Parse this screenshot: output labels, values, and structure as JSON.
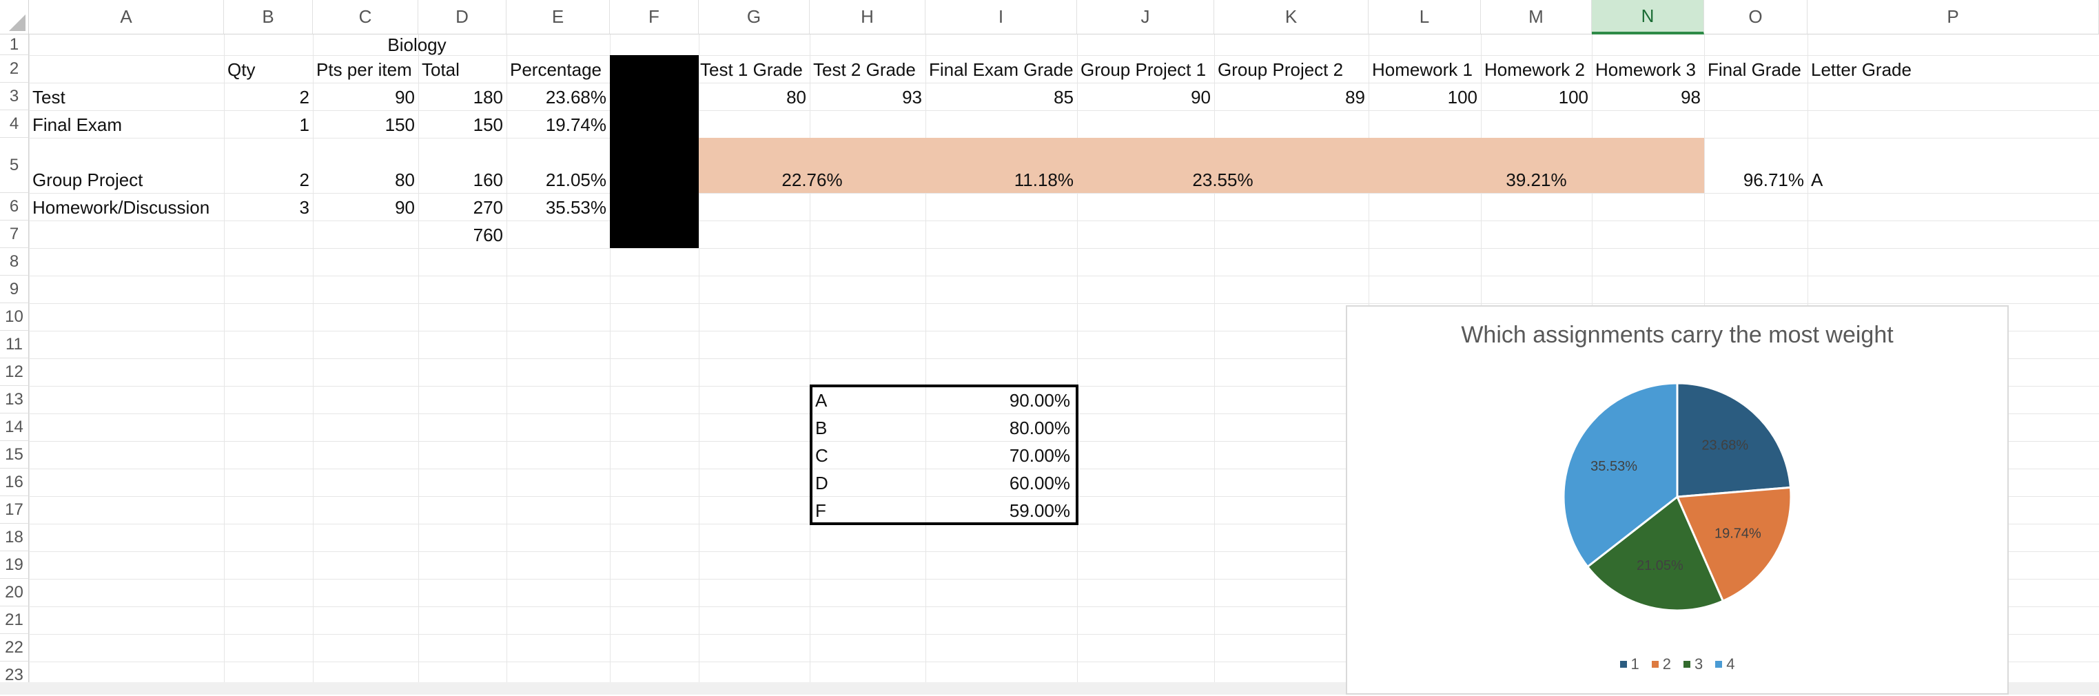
{
  "columns": [
    "A",
    "B",
    "C",
    "D",
    "E",
    "F",
    "G",
    "H",
    "I",
    "J",
    "K",
    "L",
    "M",
    "N",
    "O",
    "P"
  ],
  "selected_column": "N",
  "rows": [
    "1",
    "2",
    "3",
    "4",
    "5",
    "6",
    "7",
    "8",
    "9",
    "10",
    "11",
    "12",
    "13",
    "14",
    "15",
    "16",
    "17",
    "18",
    "19",
    "20",
    "21",
    "22",
    "23"
  ],
  "cells": {
    "title": "Biology",
    "headers": {
      "qty": "Qty",
      "pts": "Pts per item",
      "total": "Total",
      "percentage": "Percentage",
      "test1": "Test 1 Grade",
      "test2": "Test 2 Grade",
      "final_exam": "Final Exam Grade",
      "gp1": "Group Project 1",
      "gp2": "Group Project 2",
      "hw1": "Homework 1",
      "hw2": "Homework 2",
      "hw3": "Homework 3",
      "final_grade": "Final Grade",
      "letter_grade": "Letter Grade"
    },
    "categories": [
      {
        "name": "Test",
        "qty": "2",
        "pts": "90",
        "total": "180",
        "pct": "23.68%"
      },
      {
        "name": "Final Exam",
        "qty": "1",
        "pts": "150",
        "total": "150",
        "pct": "19.74%"
      },
      {
        "name": "Group Project",
        "qty": "2",
        "pts": "80",
        "total": "160",
        "pct": "21.05%"
      },
      {
        "name": "Homework/Discussion",
        "qty": "3",
        "pts": "90",
        "total": "270",
        "pct": "35.53%"
      }
    ],
    "grand_total": "760",
    "grades": {
      "test1": "80",
      "test2": "93",
      "final_exam": "85",
      "gp1": "90",
      "gp2": "89",
      "hw1": "100",
      "hw2": "100",
      "hw3": "98"
    },
    "weighted": {
      "test": "22.76%",
      "final_exam": "11.18%",
      "group_project": "23.55%",
      "homework": "39.21%",
      "final_grade": "96.71%",
      "letter": "A"
    },
    "scale": [
      {
        "letter": "A",
        "min": "90.00%"
      },
      {
        "letter": "B",
        "min": "80.00%"
      },
      {
        "letter": "C",
        "min": "70.00%"
      },
      {
        "letter": "D",
        "min": "60.00%"
      },
      {
        "letter": "F",
        "min": "59.00%"
      }
    ]
  },
  "chart_data": {
    "type": "pie",
    "title": "Which assignments carry the most weight",
    "categories": [
      "1",
      "2",
      "3",
      "4"
    ],
    "values": [
      23.68,
      19.74,
      21.05,
      35.53
    ],
    "labels": [
      "23.68%",
      "19.74%",
      "21.05%",
      "35.53%"
    ],
    "colors": [
      "#2b5c80",
      "#dd7a40",
      "#336b2e",
      "#4a9bd4"
    ],
    "legend": "bottom"
  }
}
